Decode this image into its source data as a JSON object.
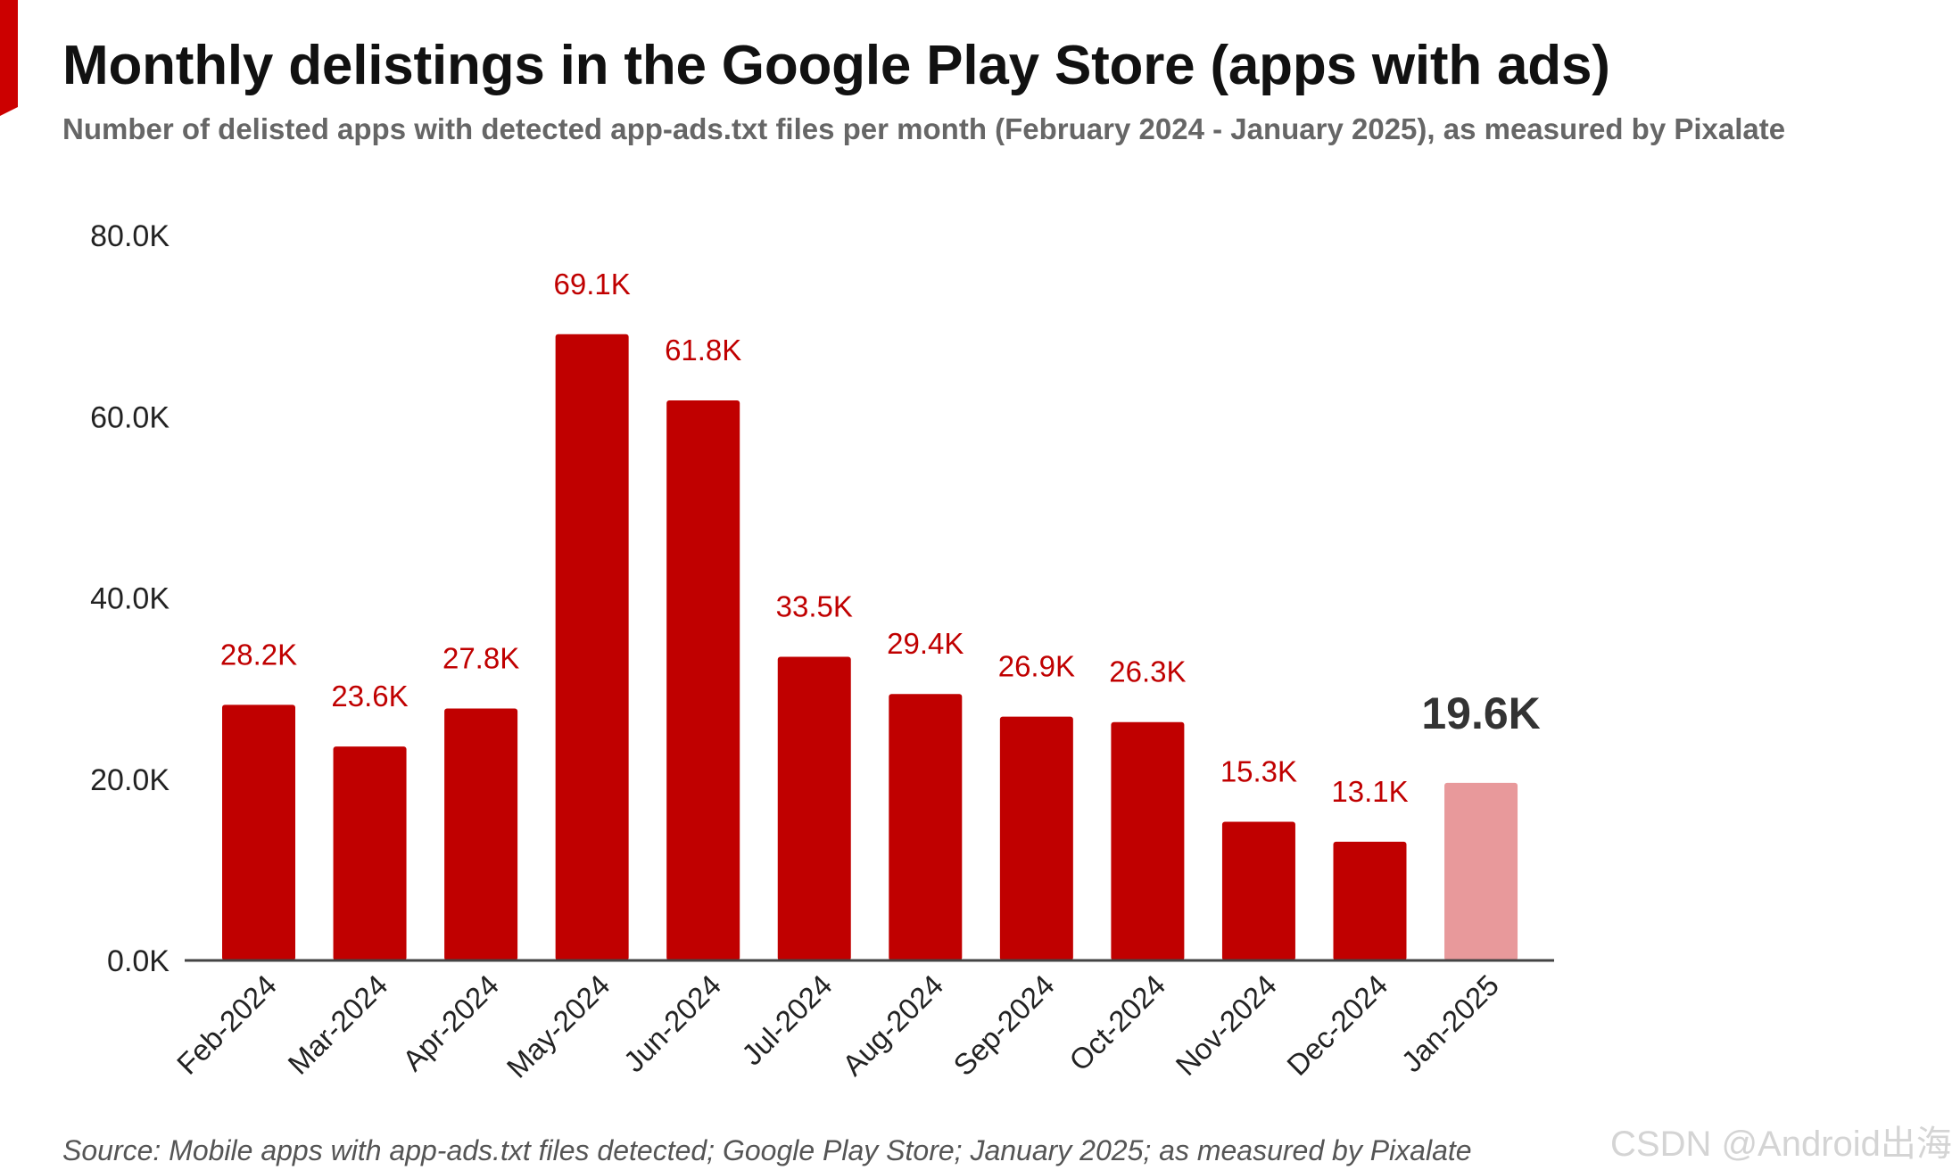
{
  "header": {
    "title": "Monthly delistings in the Google Play Store (apps with ads)",
    "subtitle": "Number of delisted apps with detected app-ads.txt files per month (February 2024 - January 2025), as measured by Pixalate"
  },
  "footer": {
    "source": "Source: Mobile apps with app-ads.txt files detected; Google Play Store; January 2025; as measured by Pixalate"
  },
  "watermark": {
    "text": "CSDN @Android出海"
  },
  "colors": {
    "bar": "#c00000",
    "bar_highlight": "#e8999b",
    "label": "#c00000",
    "label_highlight": "#333333",
    "accent": "#cc0000"
  },
  "chart_data": {
    "type": "bar",
    "title": "Monthly delistings in the Google Play Store (apps with ads)",
    "xlabel": "",
    "ylabel": "",
    "ylim": [
      0,
      80000
    ],
    "yticks": [
      0,
      20000,
      40000,
      60000,
      80000
    ],
    "ytick_labels": [
      "0.0K",
      "20.0K",
      "40.0K",
      "60.0K",
      "80.0K"
    ],
    "grid": false,
    "categories": [
      "Feb-2024",
      "Mar-2024",
      "Apr-2024",
      "May-2024",
      "Jun-2024",
      "Jul-2024",
      "Aug-2024",
      "Sep-2024",
      "Oct-2024",
      "Nov-2024",
      "Dec-2024",
      "Jan-2025"
    ],
    "values": [
      28200,
      23600,
      27800,
      69100,
      61800,
      33500,
      29400,
      26900,
      26300,
      15300,
      13100,
      19600
    ],
    "data_labels": [
      "28.2K",
      "23.6K",
      "27.8K",
      "69.1K",
      "61.8K",
      "33.5K",
      "29.4K",
      "26.9K",
      "26.3K",
      "15.3K",
      "13.1K",
      "19.6K"
    ],
    "highlight_index": 11
  }
}
